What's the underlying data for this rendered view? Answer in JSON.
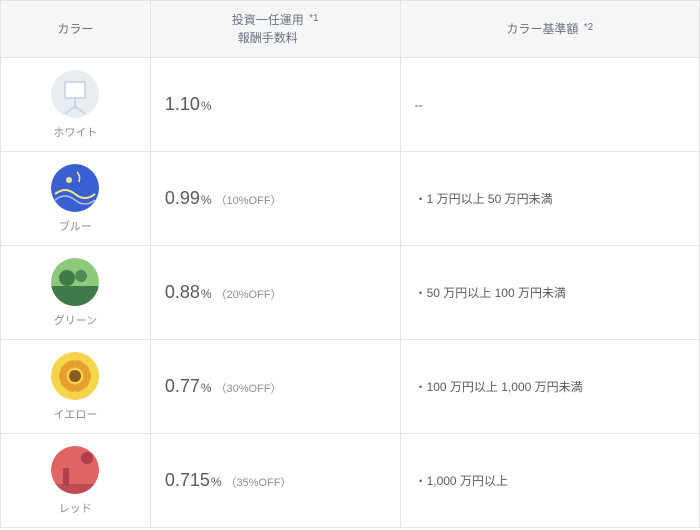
{
  "header": {
    "col1": "カラー",
    "col2_line1": "投資一任運用",
    "col2_line2": "報酬手数料",
    "col2_sup": "*1",
    "col3": "カラー基準額",
    "col3_sup": "*2"
  },
  "colors": {
    "border": "#e0e3e8",
    "header_bg": "#f5f6f8",
    "text_main": "#555b66",
    "text_muted": "#888f99"
  },
  "pct_symbol": "%",
  "rows": [
    {
      "id": "white",
      "label": "ホワイト",
      "fee_value": "1.10",
      "fee_off": "",
      "base_text": "--",
      "icon": {
        "bg": "#e8edf2",
        "motif": "easel",
        "motif_color": "#c8d0da"
      }
    },
    {
      "id": "blue",
      "label": "ブルー",
      "fee_value": "0.99",
      "fee_off": "（10%OFF）",
      "base_text": "・1 万円以上 50 万円未満",
      "icon": {
        "bg": "#3a5fd0",
        "motif": "starry",
        "motif_color": "#f2e98a"
      }
    },
    {
      "id": "green",
      "label": "グリーン",
      "fee_value": "0.88",
      "fee_off": "（20%OFF）",
      "base_text": "・50 万円以上 100 万円未満",
      "icon": {
        "bg": "#8cc97a",
        "motif": "field",
        "motif_color": "#3f7a48"
      }
    },
    {
      "id": "yellow",
      "label": "イエロー",
      "fee_value": "0.77",
      "fee_off": "（30%OFF）",
      "base_text": "・100 万円以上 1,000 万円未満",
      "icon": {
        "bg": "#f5d34a",
        "motif": "sunflower",
        "motif_color": "#e6a02e"
      }
    },
    {
      "id": "red",
      "label": "レッド",
      "fee_value": "0.715",
      "fee_off": "（35%OFF）",
      "base_text": "・1,000 万円以上",
      "icon": {
        "bg": "#e06464",
        "motif": "figure",
        "motif_color": "#b0414c"
      }
    }
  ]
}
